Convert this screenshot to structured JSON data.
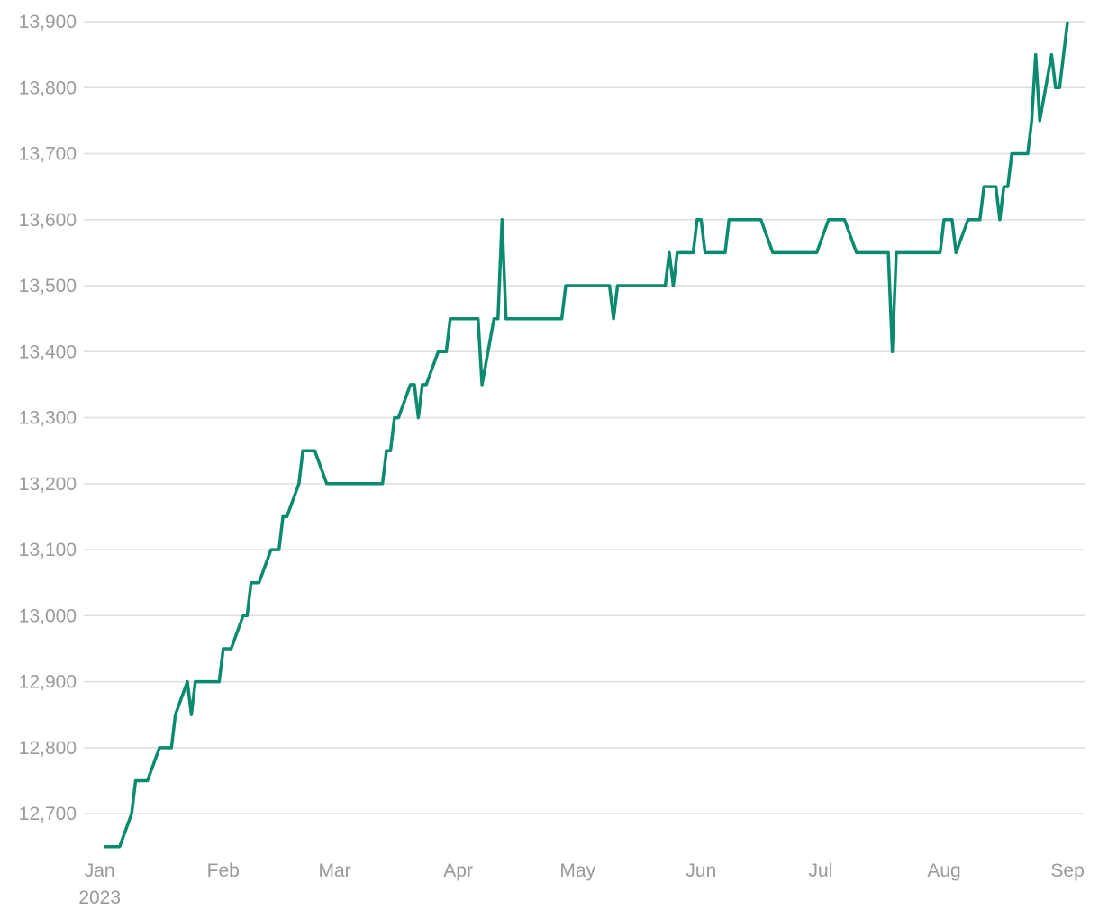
{
  "chart_data": {
    "type": "line",
    "color": "#0a8a6e",
    "x": [
      1,
      5,
      8,
      9,
      12,
      15,
      18,
      19,
      22,
      23,
      24,
      30,
      31,
      33,
      36,
      37,
      38,
      40,
      43,
      45,
      46,
      47,
      50,
      51,
      54,
      57,
      71,
      72,
      73,
      74,
      75,
      78,
      79,
      80,
      81,
      82,
      85,
      87,
      88,
      95,
      96,
      99,
      100,
      101,
      102,
      116,
      117,
      128,
      129,
      130,
      142,
      143,
      144,
      145,
      149,
      150,
      151,
      152,
      157,
      158,
      166,
      169,
      180,
      183,
      187,
      190,
      198,
      199,
      200,
      211,
      212,
      214,
      215,
      218,
      221,
      222,
      225,
      226,
      227,
      228,
      229,
      233,
      234,
      235,
      236,
      239,
      240,
      241,
      243
    ],
    "values": [
      12650,
      12650,
      12700,
      12750,
      12750,
      12800,
      12800,
      12850,
      12900,
      12850,
      12900,
      12900,
      12950,
      12950,
      13000,
      13000,
      13050,
      13050,
      13100,
      13100,
      13150,
      13150,
      13200,
      13250,
      13250,
      13200,
      13200,
      13250,
      13250,
      13300,
      13300,
      13350,
      13350,
      13300,
      13350,
      13350,
      13400,
      13400,
      13450,
      13450,
      13350,
      13450,
      13450,
      13600,
      13450,
      13450,
      13500,
      13500,
      13450,
      13500,
      13500,
      13550,
      13500,
      13550,
      13550,
      13600,
      13600,
      13550,
      13550,
      13600,
      13600,
      13550,
      13550,
      13600,
      13600,
      13550,
      13550,
      13400,
      13550,
      13550,
      13600,
      13600,
      13550,
      13600,
      13600,
      13650,
      13650,
      13600,
      13650,
      13650,
      13700,
      13700,
      13750,
      13850,
      13750,
      13850,
      13800,
      13800,
      13900
    ],
    "xlim": [
      -4,
      247.5
    ],
    "xticks": [
      {
        "value": 0,
        "label": "Jan"
      },
      {
        "value": 31,
        "label": "Feb"
      },
      {
        "value": 59,
        "label": "Mar"
      },
      {
        "value": 90,
        "label": "Apr"
      },
      {
        "value": 120,
        "label": "May"
      },
      {
        "value": 151,
        "label": "Jun"
      },
      {
        "value": 181,
        "label": "Jul"
      },
      {
        "value": 212,
        "label": "Aug"
      },
      {
        "value": 243,
        "label": "Sep"
      }
    ],
    "xtick_sublabel": "2023",
    "ylim": [
      12636,
      13900
    ],
    "yticks": [
      {
        "value": 12700,
        "label": "12,700"
      },
      {
        "value": 12800,
        "label": "12,800"
      },
      {
        "value": 12900,
        "label": "12,900"
      },
      {
        "value": 13000,
        "label": "13,000"
      },
      {
        "value": 13100,
        "label": "13,100"
      },
      {
        "value": 13200,
        "label": "13,200"
      },
      {
        "value": 13300,
        "label": "13,300"
      },
      {
        "value": 13400,
        "label": "13,400"
      },
      {
        "value": 13500,
        "label": "13,500"
      },
      {
        "value": 13600,
        "label": "13,600"
      },
      {
        "value": 13700,
        "label": "13,700"
      },
      {
        "value": 13800,
        "label": "13,800"
      },
      {
        "value": 13900,
        "label": "13,900"
      }
    ],
    "grid": true
  }
}
